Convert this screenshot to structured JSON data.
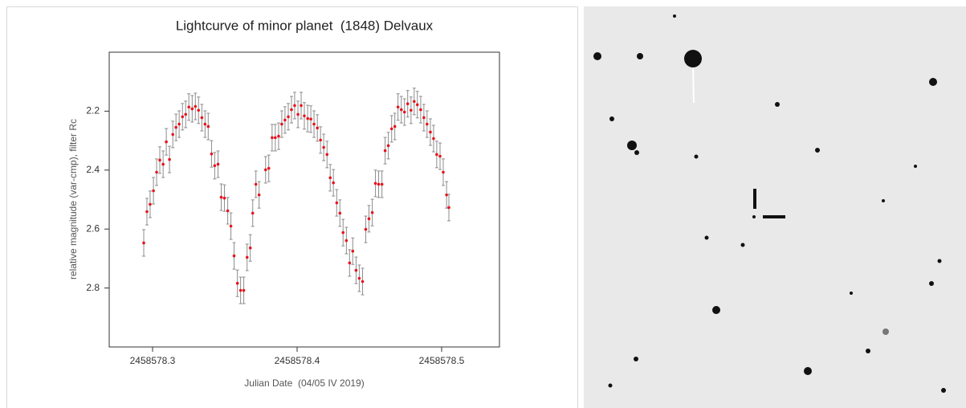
{
  "chart_data": {
    "type": "scatter",
    "title": "Lightcurve of minor planet  (1848) Delvaux",
    "x_label": "Julian Date  (04/05 IV 2019)",
    "y_label": "relative magnitude (var-cmp), filter Rc",
    "x": [
      2458578.2939,
      2458578.2961,
      2458578.2983,
      2458578.3006,
      2458578.3028,
      2458578.305,
      2458578.3073,
      2458578.3095,
      2458578.3117,
      2458578.314,
      2458578.3162,
      2458578.3184,
      2458578.3207,
      2458578.3229,
      2458578.3251,
      2458578.3274,
      2458578.3296,
      2458578.3318,
      2458578.3341,
      2458578.3363,
      2458578.3385,
      2458578.3408,
      2458578.343,
      2458578.3453,
      2458578.3475,
      2458578.3497,
      2458578.352,
      2458578.3542,
      2458578.3564,
      2458578.3587,
      2458578.3609,
      2458578.3631,
      2458578.3654,
      2458578.3676,
      2458578.3693,
      2458578.3715,
      2458578.3737,
      2458578.3782,
      2458578.3804,
      2458578.3827,
      2458578.3849,
      2458578.3872,
      2458578.3894,
      2458578.3916,
      2458578.3939,
      2458578.3961,
      2458578.3983,
      2458578.4006,
      2458578.4028,
      2458578.405,
      2458578.4073,
      2458578.4095,
      2458578.4117,
      2458578.414,
      2458578.4162,
      2458578.4184,
      2458578.4207,
      2458578.4229,
      2458578.4251,
      2458578.4274,
      2458578.4296,
      2458578.4318,
      2458578.4341,
      2458578.4363,
      2458578.4385,
      2458578.4408,
      2458578.443,
      2458578.4453,
      2458578.4475,
      2458578.4497,
      2458578.452,
      2458578.4542,
      2458578.4564,
      2458578.4587,
      2458578.4609,
      2458578.4631,
      2458578.4654,
      2458578.4676,
      2458578.4698,
      2458578.4721,
      2458578.4743,
      2458578.4765,
      2458578.4788,
      2458578.481,
      2458578.4832,
      2458578.4855,
      2458578.4877,
      2458578.4899,
      2458578.4922,
      2458578.4944,
      2458578.4966,
      2458578.4989,
      2458578.5011,
      2458578.5034,
      2458578.505
    ],
    "values": [
      2.647,
      2.541,
      2.516,
      2.47,
      2.407,
      2.366,
      2.38,
      2.304,
      2.364,
      2.279,
      2.255,
      2.244,
      2.219,
      2.211,
      2.186,
      2.192,
      2.184,
      2.197,
      2.222,
      2.244,
      2.252,
      2.345,
      2.385,
      2.38,
      2.492,
      2.495,
      2.538,
      2.59,
      2.691,
      2.784,
      2.808,
      2.808,
      2.696,
      2.664,
      2.546,
      2.448,
      2.484,
      2.399,
      2.394,
      2.29,
      2.29,
      2.285,
      2.244,
      2.23,
      2.219,
      2.195,
      2.181,
      2.211,
      2.181,
      2.216,
      2.225,
      2.227,
      2.244,
      2.257,
      2.298,
      2.323,
      2.347,
      2.426,
      2.443,
      2.511,
      2.546,
      2.612,
      2.639,
      2.715,
      2.675,
      2.74,
      2.767,
      2.778,
      2.601,
      2.565,
      2.544,
      2.445,
      2.448,
      2.448,
      2.334,
      2.317,
      2.26,
      2.252,
      2.186,
      2.195,
      2.203,
      2.175,
      2.197,
      2.167,
      2.178,
      2.195,
      2.222,
      2.244,
      2.271,
      2.293,
      2.347,
      2.353,
      2.407,
      2.484,
      2.527
    ],
    "yerr": 0.045,
    "color": "#e8141e",
    "error_color": "#8c8c8c",
    "xlim": [
      2458578.27,
      2458578.54
    ],
    "xticks": [
      2458578.3,
      2458578.4,
      2458578.5
    ],
    "ylim": [
      2.0,
      3.0
    ],
    "y_inverted": true,
    "yticks": [
      2.2,
      2.4,
      2.6,
      2.8
    ],
    "grid": false
  }
}
